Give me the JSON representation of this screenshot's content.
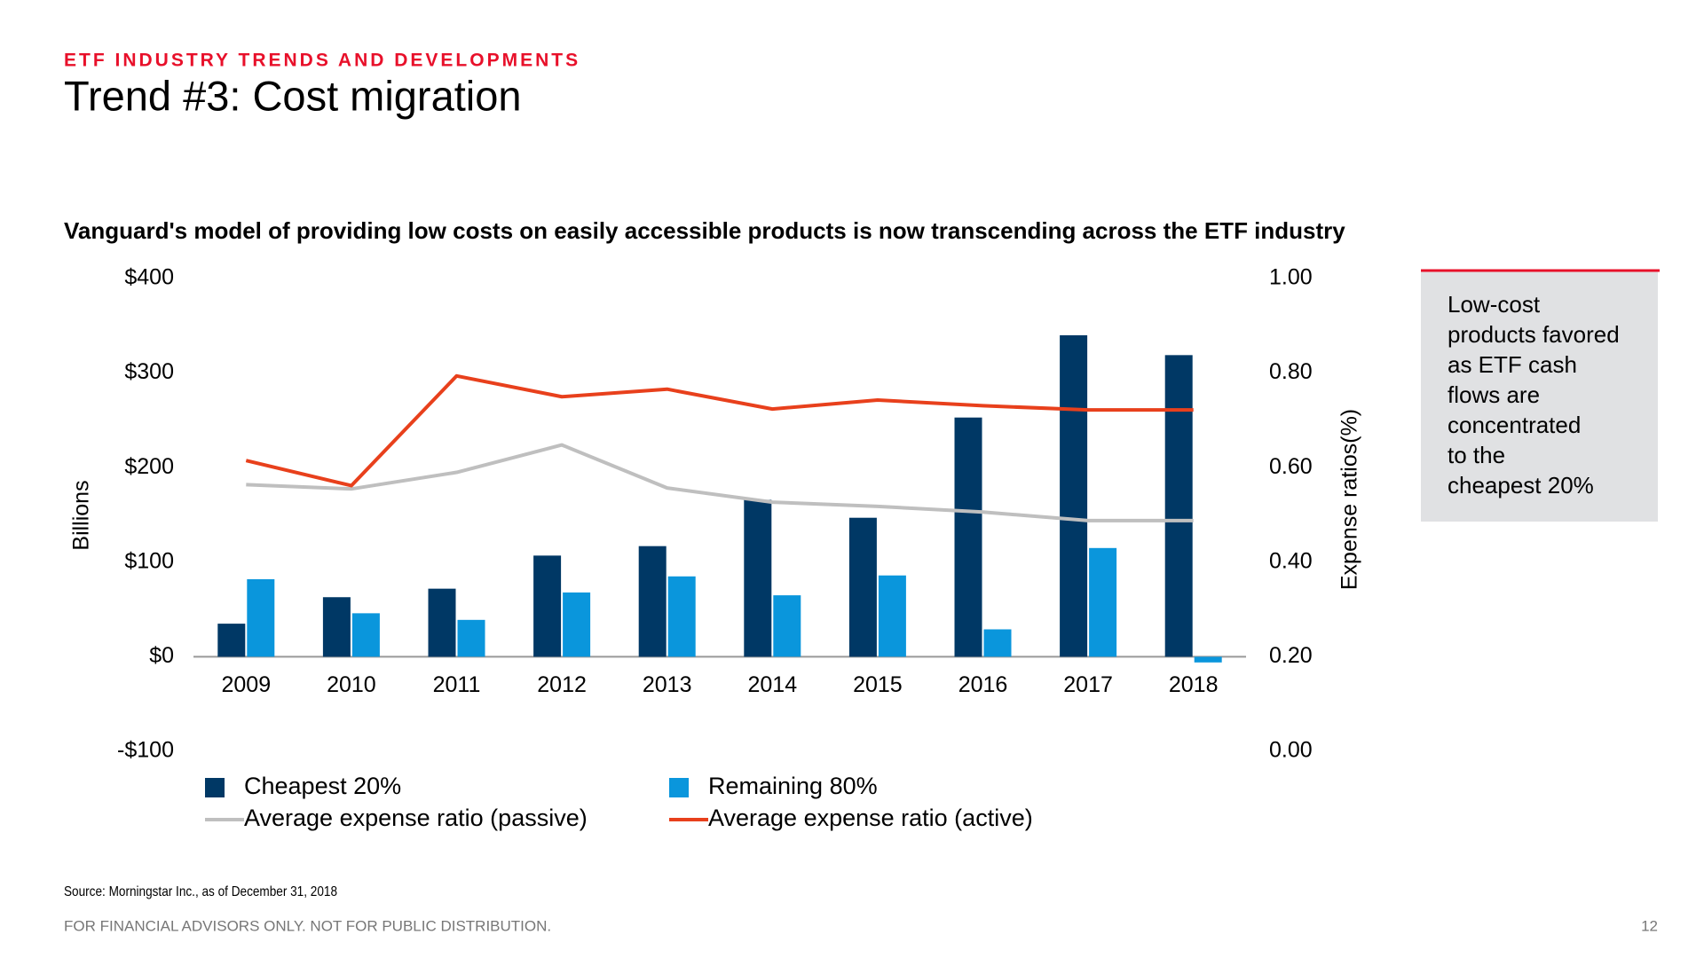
{
  "header": {
    "kicker": "ETF INDUSTRY TRENDS AND DEVELOPMENTS",
    "title": "Trend #3: Cost migration"
  },
  "chart_data": {
    "type": "bar",
    "title": "Vanguard's model of providing low costs on easily accessible products is now transcending across the ETF industry",
    "y_label": "Billions",
    "y2_label": "Expense ratios(%)",
    "categories": [
      "2009",
      "2010",
      "2011",
      "2012",
      "2013",
      "2014",
      "2015",
      "2016",
      "2017",
      "2018"
    ],
    "series": [
      {
        "name": "Cheapest 20%",
        "type": "bar",
        "color": "#003865",
        "values": [
          35,
          63,
          72,
          107,
          117,
          166,
          147,
          253,
          340,
          319
        ]
      },
      {
        "name": "Remaining 80%",
        "type": "bar",
        "color": "#0a96dc",
        "values": [
          82,
          46,
          39,
          68,
          85,
          65,
          86,
          29,
          115,
          -6
        ]
      },
      {
        "name": "Average expense ratio (passive)",
        "type": "line",
        "axis": "y2",
        "color": "#bfbfbf",
        "values": [
          0.564,
          0.555,
          0.59,
          0.648,
          0.557,
          0.527,
          0.518,
          0.506,
          0.488,
          0.488
        ]
      },
      {
        "name": "Average expense ratio (active)",
        "type": "line",
        "axis": "y2",
        "color": "#e8401c",
        "values": [
          0.615,
          0.562,
          0.794,
          0.75,
          0.766,
          0.724,
          0.743,
          0.731,
          0.722,
          0.722
        ]
      }
    ],
    "ylim": [
      -100,
      400
    ],
    "yticks": [
      {
        "value": 400,
        "label": "$400"
      },
      {
        "value": 300,
        "label": "$300"
      },
      {
        "value": 200,
        "label": "$200"
      },
      {
        "value": 100,
        "label": "$100"
      },
      {
        "value": 0,
        "label": "$0"
      },
      {
        "value": -100,
        "label": "-$100"
      }
    ],
    "y2lim": [
      0,
      1
    ],
    "y2ticks": [
      {
        "value": 1,
        "label": "1.00"
      },
      {
        "value": 0.8,
        "label": "0.80"
      },
      {
        "value": 0.6,
        "label": "0.60"
      },
      {
        "value": 0.4,
        "label": "0.40"
      },
      {
        "value": 0.2,
        "label": "0.20"
      },
      {
        "value": 0,
        "label": "0.00"
      }
    ],
    "grid": false
  },
  "note": {
    "lines": [
      "Low-cost",
      "products favored",
      "as ETF cash",
      "flows are",
      "concentrated",
      "to the",
      "cheapest 20%"
    ]
  },
  "source": "Source: Morningstar Inc., as of December 31, 2018",
  "footer": {
    "disclaimer": "FOR FINANCIAL ADVISORS ONLY. NOT FOR PUBLIC DISTRIBUTION.",
    "page": "12"
  }
}
